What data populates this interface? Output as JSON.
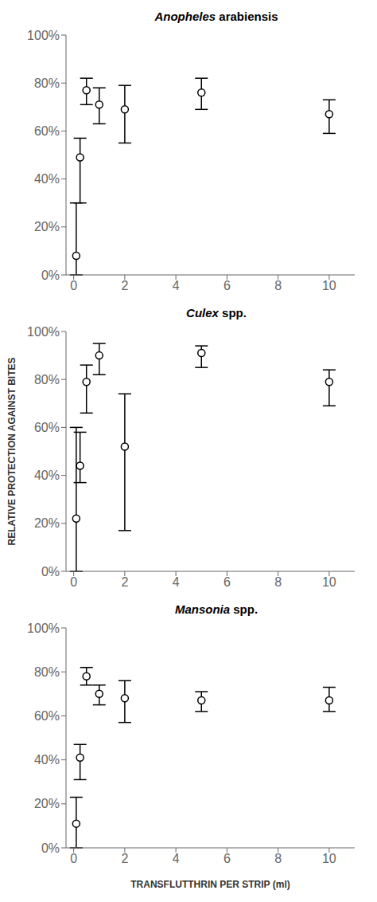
{
  "chart_data": [
    {
      "type": "scatter",
      "title": "Anopheles arabiensis",
      "x": [
        0.1,
        0.25,
        0.5,
        1.0,
        2.0,
        5.0,
        10.0
      ],
      "values": [
        0.08,
        0.49,
        0.77,
        0.71,
        0.69,
        0.76,
        0.67
      ],
      "yerr_lo": [
        0.08,
        0.19,
        0.06,
        0.08,
        0.14,
        0.07,
        0.08
      ],
      "yerr_hi": [
        0.22,
        0.08,
        0.05,
        0.07,
        0.1,
        0.06,
        0.06
      ],
      "color": "black",
      "marker": "circle",
      "xlim": [
        -0.3,
        11.0
      ],
      "xticks": [
        0,
        2,
        4,
        6,
        8,
        10
      ],
      "ylim": [
        0.0,
        1.0
      ],
      "yticks": [
        {
          "value": 0.0,
          "label": "0%"
        },
        {
          "value": 0.2,
          "label": "20%"
        },
        {
          "value": 0.4,
          "label": "40%"
        },
        {
          "value": 0.6,
          "label": "60%"
        },
        {
          "value": 0.8,
          "label": "80%"
        },
        {
          "value": 1.0,
          "label": "100%"
        }
      ],
      "grid": false
    },
    {
      "type": "scatter",
      "title": "Culex spp.",
      "ylabel": "RELATIVE PROTECTION AGAINST BITES",
      "x": [
        0.1,
        0.25,
        0.5,
        1.0,
        2.0,
        5.0,
        10.0
      ],
      "values": [
        0.22,
        0.44,
        0.79,
        0.9,
        0.52,
        0.91,
        0.79
      ],
      "yerr_lo": [
        0.22,
        0.07,
        0.13,
        0.08,
        0.35,
        0.06,
        0.1
      ],
      "yerr_hi": [
        0.38,
        0.14,
        0.07,
        0.05,
        0.22,
        0.03,
        0.05
      ],
      "color": "black",
      "marker": "circle",
      "xlim": [
        -0.3,
        11.0
      ],
      "xticks": [
        0,
        2,
        4,
        6,
        8,
        10
      ],
      "ylim": [
        0.0,
        1.0
      ],
      "yticks": [
        {
          "value": 0.0,
          "label": "0%"
        },
        {
          "value": 0.2,
          "label": "20%"
        },
        {
          "value": 0.4,
          "label": "40%"
        },
        {
          "value": 0.6,
          "label": "60%"
        },
        {
          "value": 0.8,
          "label": "80%"
        },
        {
          "value": 1.0,
          "label": "100%"
        }
      ],
      "grid": false
    },
    {
      "type": "scatter",
      "title": "Mansonia spp.",
      "xlabel": "TRANSFLUTTHRIN PER STRIP (ml)",
      "x": [
        0.1,
        0.25,
        0.5,
        1.0,
        2.0,
        5.0,
        10.0
      ],
      "values": [
        0.11,
        0.41,
        0.78,
        0.7,
        0.68,
        0.67,
        0.67
      ],
      "yerr_lo": [
        0.11,
        0.1,
        0.04,
        0.05,
        0.11,
        0.05,
        0.05
      ],
      "yerr_hi": [
        0.12,
        0.06,
        0.04,
        0.04,
        0.08,
        0.04,
        0.06
      ],
      "color": "black",
      "marker": "circle",
      "xlim": [
        -0.3,
        11.0
      ],
      "xticks": [
        0,
        2,
        4,
        6,
        8,
        10
      ],
      "ylim": [
        0.0,
        1.0
      ],
      "yticks": [
        {
          "value": 0.0,
          "label": "0%"
        },
        {
          "value": 0.2,
          "label": "20%"
        },
        {
          "value": 0.4,
          "label": "40%"
        },
        {
          "value": 0.6,
          "label": "60%"
        },
        {
          "value": 0.8,
          "label": "80%"
        },
        {
          "value": 1.0,
          "label": "100%"
        }
      ],
      "grid": false
    }
  ]
}
